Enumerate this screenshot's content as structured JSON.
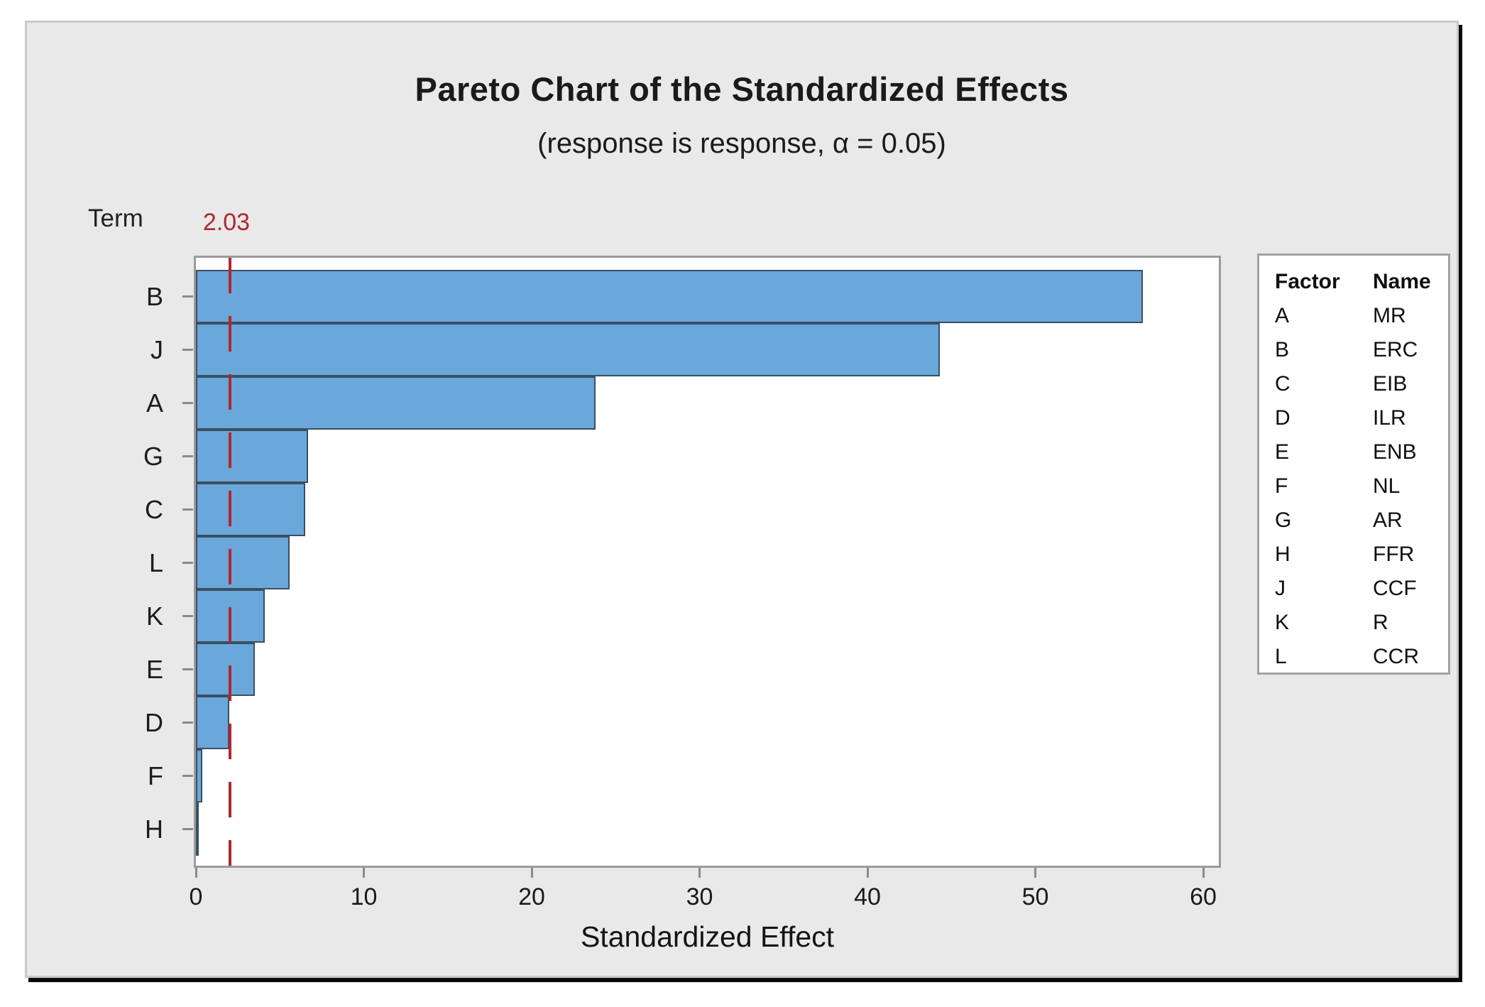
{
  "title": "Pareto Chart of the Standardized Effects",
  "subtitle": "(response is response, α = 0.05)",
  "y_axis_title": "Term",
  "reference_line": {
    "value": 2.03,
    "label": "2.03",
    "color": "#b02730"
  },
  "chart_data": {
    "type": "bar",
    "orientation": "horizontal",
    "title": "Pareto Chart of the Standardized Effects",
    "subtitle": "(response is response, α = 0.05)",
    "xlabel": "Standardized Effect",
    "ylabel": "Term",
    "categories": [
      "B",
      "J",
      "A",
      "G",
      "C",
      "L",
      "K",
      "E",
      "D",
      "F",
      "H"
    ],
    "values": [
      56.4,
      44.3,
      23.8,
      6.7,
      6.5,
      5.6,
      4.1,
      3.5,
      2.0,
      0.4,
      0.1
    ],
    "x_ticks": [
      0,
      10,
      20,
      30,
      40,
      50,
      60
    ],
    "xlim": [
      0,
      60.9
    ],
    "reference_line": 2.03,
    "grid": false,
    "bar_color": "#6aa7da",
    "bar_border_color": "#3a4f63",
    "legend_position": "right"
  },
  "legend": {
    "headers": [
      "Factor",
      "Name"
    ],
    "rows": [
      {
        "factor": "A",
        "name": "MR"
      },
      {
        "factor": "B",
        "name": "ERC"
      },
      {
        "factor": "C",
        "name": "EIB"
      },
      {
        "factor": "D",
        "name": "ILR"
      },
      {
        "factor": "E",
        "name": "ENB"
      },
      {
        "factor": "F",
        "name": "NL"
      },
      {
        "factor": "G",
        "name": "AR"
      },
      {
        "factor": "H",
        "name": "FFR"
      },
      {
        "factor": "J",
        "name": "CCF"
      },
      {
        "factor": "K",
        "name": "R"
      },
      {
        "factor": "L",
        "name": "CCR"
      }
    ]
  }
}
